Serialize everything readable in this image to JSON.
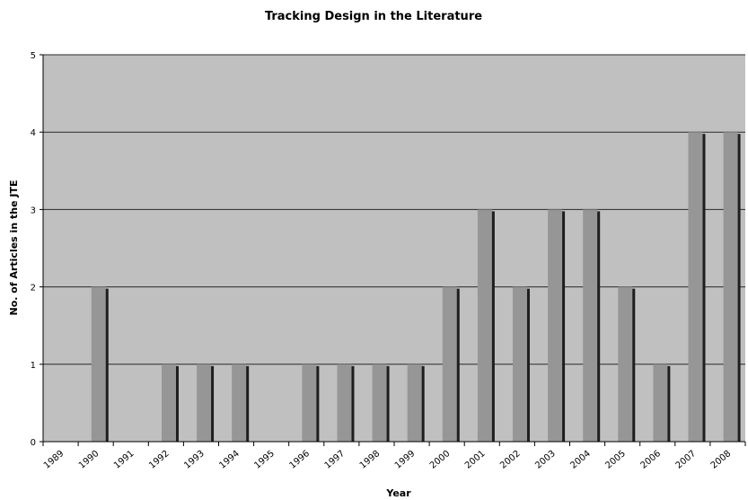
{
  "chart_data": {
    "type": "bar",
    "title": "Tracking Design in the Literature",
    "xlabel": "Year",
    "ylabel": "No. of Articles in the JTE",
    "categories": [
      "1989",
      "1990",
      "1991",
      "1992",
      "1993",
      "1994",
      "1995",
      "1996",
      "1997",
      "1998",
      "1999",
      "2000",
      "2001",
      "2002",
      "2003",
      "2004",
      "2005",
      "2006",
      "2007",
      "2008"
    ],
    "values": [
      0,
      2,
      0,
      1,
      1,
      1,
      0,
      1,
      1,
      1,
      1,
      2,
      3,
      2,
      3,
      3,
      2,
      1,
      4,
      4
    ],
    "ylim": [
      0,
      5
    ],
    "yticks": [
      0,
      1,
      2,
      3,
      4,
      5
    ],
    "grid": true,
    "legend": "none",
    "colors": {
      "plot_bg": "#c0c0c0",
      "bar_front": "#969696",
      "bar_shadow": "#1e1e1e",
      "grid": "#2a2a2a"
    }
  }
}
